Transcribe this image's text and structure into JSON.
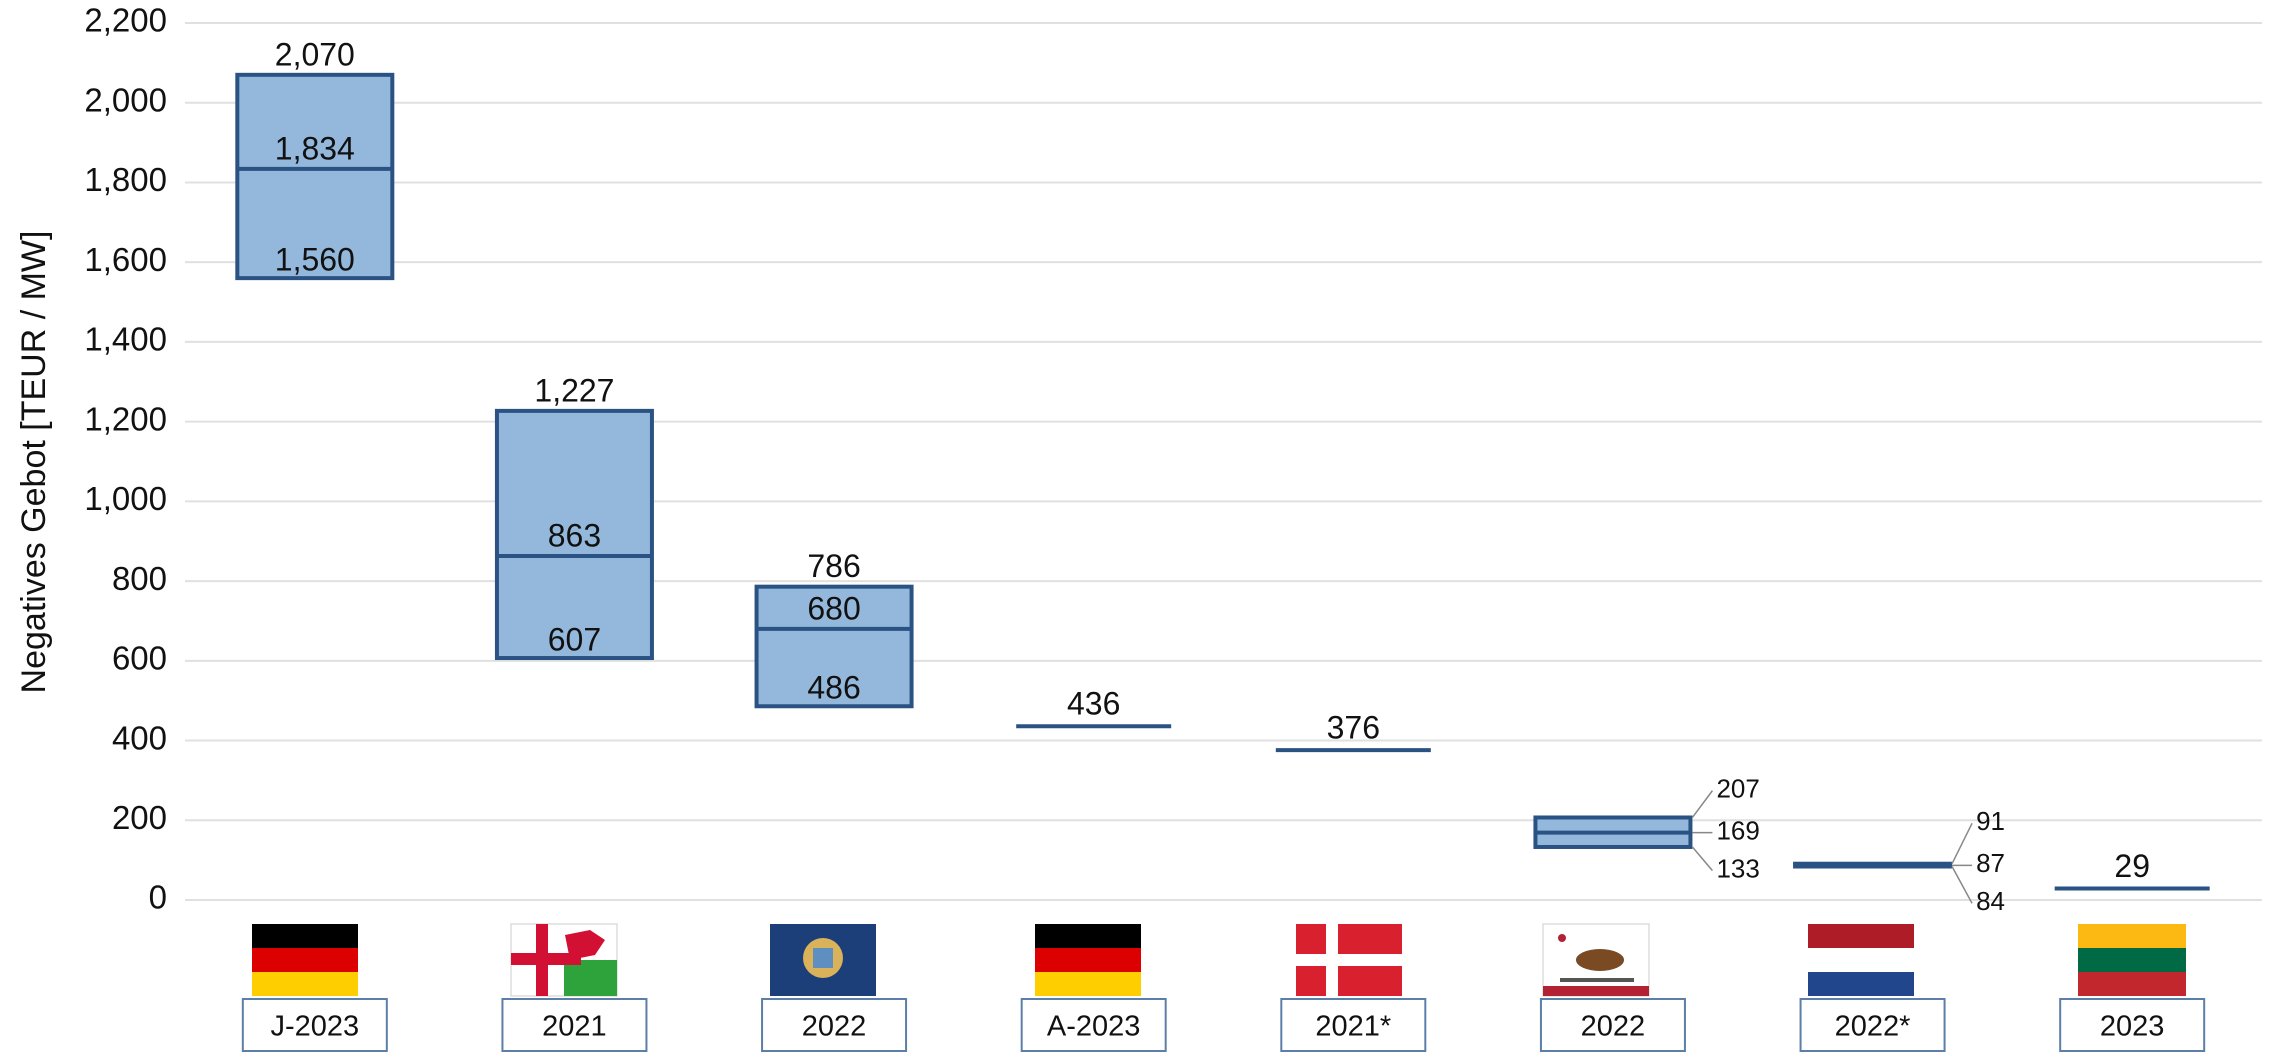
{
  "chart_data": {
    "type": "range",
    "y_label": "Negatives Gebot [TEUR / MW]",
    "categories": [
      "J-2023",
      "2021",
      "2022",
      "A-2023",
      "2021*",
      "2022",
      "2022*",
      "2023"
    ],
    "high": [
      2070,
      1227,
      786,
      null,
      null,
      207,
      91,
      null
    ],
    "mid": [
      1834,
      863,
      680,
      436,
      376,
      169,
      87,
      29
    ],
    "low": [
      1560,
      607,
      486,
      null,
      null,
      133,
      84,
      null
    ],
    "value_labels": {
      "high": [
        "2,070",
        "1,227",
        "786",
        null,
        null,
        "207",
        "91",
        null
      ],
      "mid": [
        "1,834",
        "863",
        "680",
        "436",
        "376",
        "169",
        "87",
        "29"
      ],
      "low": [
        "1,560",
        "607",
        "486",
        null,
        null,
        "133",
        "84",
        null
      ]
    },
    "fill_color": "#94b8dc",
    "line_color": "#2a5283",
    "ylim": [
      0,
      2200
    ],
    "yticks": [
      0,
      200,
      400,
      600,
      800,
      {
        "value": 1000,
        "label": "1,000"
      },
      {
        "value": 1200,
        "label": "1,200"
      },
      {
        "value": 1400,
        "label": "1,400"
      },
      {
        "value": 1600,
        "label": "1,600"
      },
      {
        "value": 1800,
        "label": "1,800"
      },
      {
        "value": 2000,
        "label": "2,000"
      },
      {
        "value": 2200,
        "label": "2,200"
      }
    ],
    "grid": true
  }
}
